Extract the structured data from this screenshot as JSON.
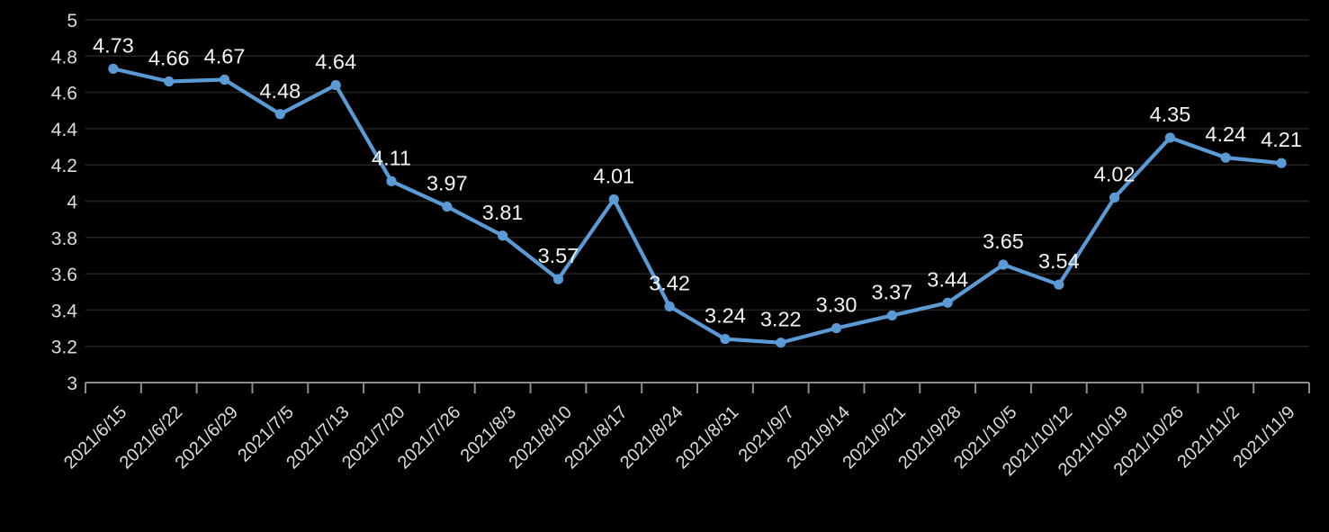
{
  "chart_data": {
    "type": "line",
    "title": "",
    "x": [
      "2021/6/15",
      "2021/6/22",
      "2021/6/29",
      "2021/7/5",
      "2021/7/13",
      "2021/7/20",
      "2021/7/26",
      "2021/8/3",
      "2021/8/10",
      "2021/8/17",
      "2021/8/24",
      "2021/8/31",
      "2021/9/7",
      "2021/9/14",
      "2021/9/21",
      "2021/9/28",
      "2021/10/5",
      "2021/10/12",
      "2021/10/19",
      "2021/10/26",
      "2021/11/2",
      "2021/11/9"
    ],
    "series": [
      {
        "name": "value",
        "values": [
          4.73,
          4.66,
          4.67,
          4.48,
          4.64,
          4.11,
          3.97,
          3.81,
          3.57,
          4.01,
          3.42,
          3.24,
          3.22,
          3.3,
          3.37,
          3.44,
          3.65,
          3.54,
          4.02,
          4.35,
          4.24,
          4.21
        ],
        "data_labels": [
          "4.73",
          "4.66",
          "4.67",
          "4.48",
          "4.64",
          "4.11",
          "3.97",
          "3.81",
          "3.57",
          "4.01",
          "3.42",
          "3.24",
          "3.22",
          "3.30",
          "3.37",
          "3.44",
          "3.65",
          "3.54",
          "4.02",
          "4.35",
          "4.24",
          "4.21"
        ]
      }
    ],
    "xlabel": "",
    "ylabel": "",
    "ylim": [
      3,
      5
    ],
    "ytick_step": 0.2,
    "ytick_labels": [
      "5",
      "4.8",
      "4.6",
      "4.4",
      "4.2",
      "4",
      "3.8",
      "3.6",
      "3.4",
      "3.2",
      "3"
    ],
    "grid": true,
    "legend_position": "none",
    "x_label_rotation_deg": -45,
    "colors": {
      "background": "#000000",
      "line": "#5B9BD5",
      "marker": "#5B9BD5",
      "gridline": "#242424",
      "axis": "#8c8c8c",
      "data_label_text": "#f2f2f2",
      "tick_label_text": "#dcdcdc"
    }
  }
}
